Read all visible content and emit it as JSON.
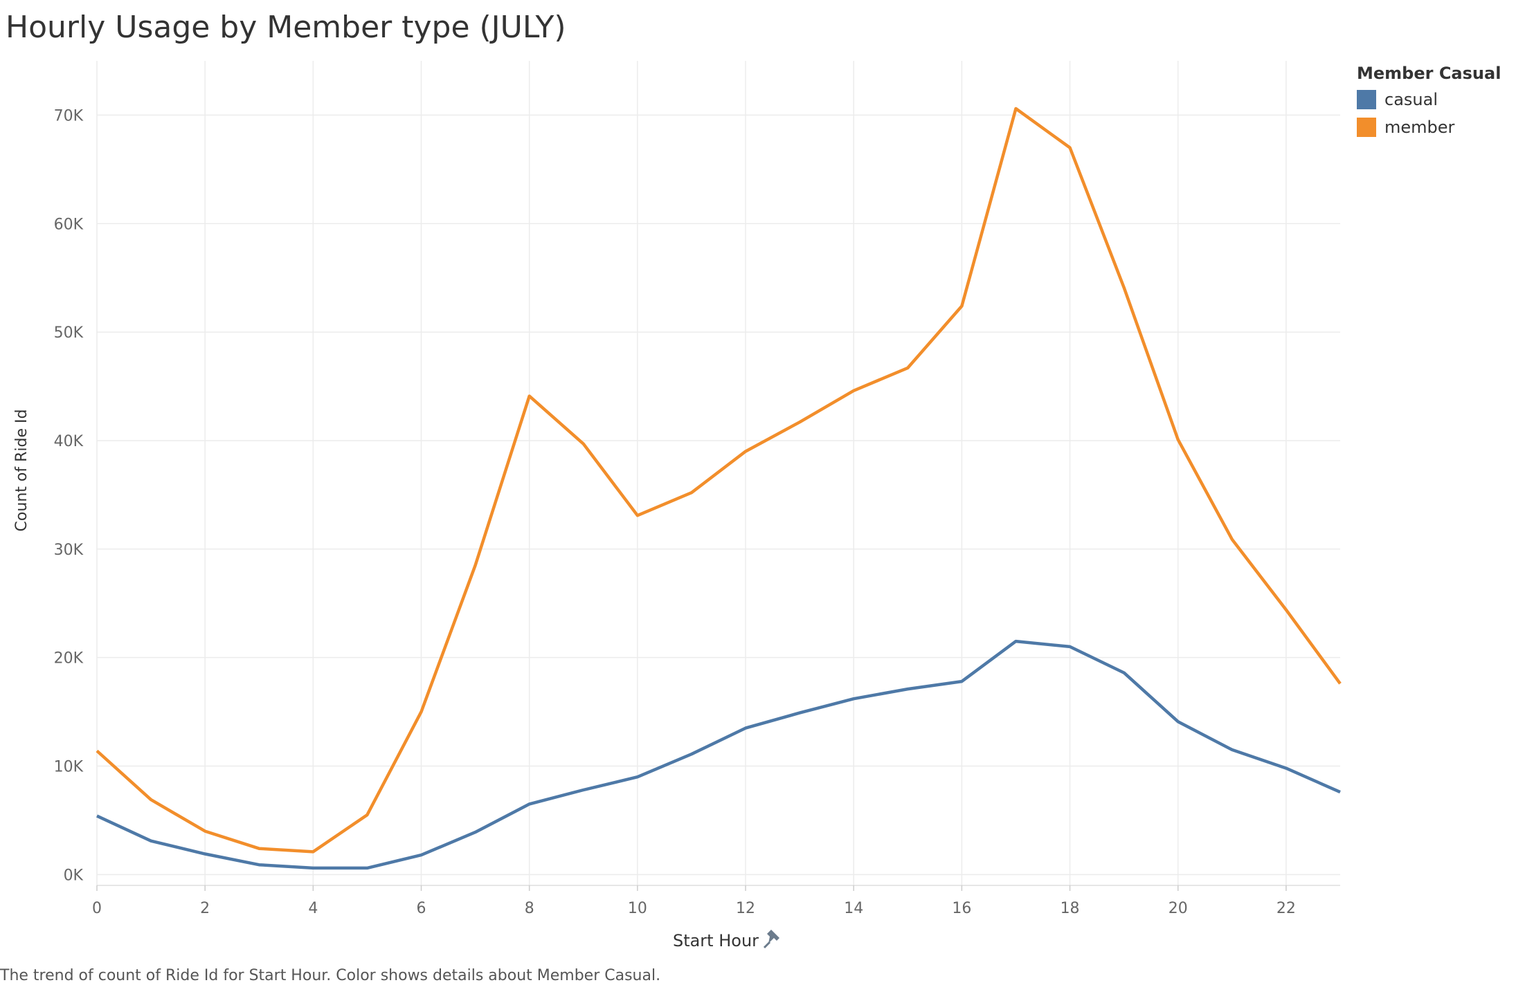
{
  "title": "Hourly Usage by Member type (JULY)",
  "caption": "The trend of count of Ride Id for Start Hour.  Color shows details about Member Casual.",
  "pin_icon": "pin-icon",
  "chart_data": {
    "type": "line",
    "title": "Hourly Usage by Member type (JULY)",
    "xlabel": "Start Hour",
    "ylabel": "Count of Ride Id",
    "x": [
      0,
      1,
      2,
      3,
      4,
      5,
      6,
      7,
      8,
      9,
      10,
      11,
      12,
      13,
      14,
      15,
      16,
      17,
      18,
      19,
      20,
      21,
      22,
      23
    ],
    "x_ticks": [
      0,
      2,
      4,
      6,
      8,
      10,
      12,
      14,
      16,
      18,
      20,
      22
    ],
    "x_tick_labels": [
      "0",
      "2",
      "4",
      "6",
      "8",
      "10",
      "12",
      "14",
      "16",
      "18",
      "20",
      "22"
    ],
    "xlim": [
      0,
      23
    ],
    "y_ticks": [
      0,
      10000,
      20000,
      30000,
      40000,
      50000,
      60000,
      70000
    ],
    "y_tick_labels": [
      "0K",
      "10K",
      "20K",
      "30K",
      "40K",
      "50K",
      "60K",
      "70K"
    ],
    "ylim": [
      -1000,
      75000
    ],
    "grid": true,
    "legend_title": "Member Casual",
    "legend_position": "top-right",
    "series": [
      {
        "name": "casual",
        "color": "#4e79a7",
        "values": [
          5400,
          3100,
          1900,
          900,
          600,
          600,
          1800,
          3900,
          6500,
          7800,
          9000,
          11100,
          13500,
          14900,
          16200,
          17100,
          17800,
          21500,
          21000,
          18600,
          14100,
          11500,
          9800,
          7600
        ]
      },
      {
        "name": "member",
        "color": "#f28e2b",
        "values": [
          11400,
          6900,
          4000,
          2400,
          2100,
          5500,
          15000,
          28500,
          44100,
          39700,
          33100,
          35200,
          39000,
          41700,
          44600,
          46700,
          52400,
          70600,
          67000,
          54100,
          40100,
          30900,
          24400,
          17600
        ]
      }
    ]
  }
}
